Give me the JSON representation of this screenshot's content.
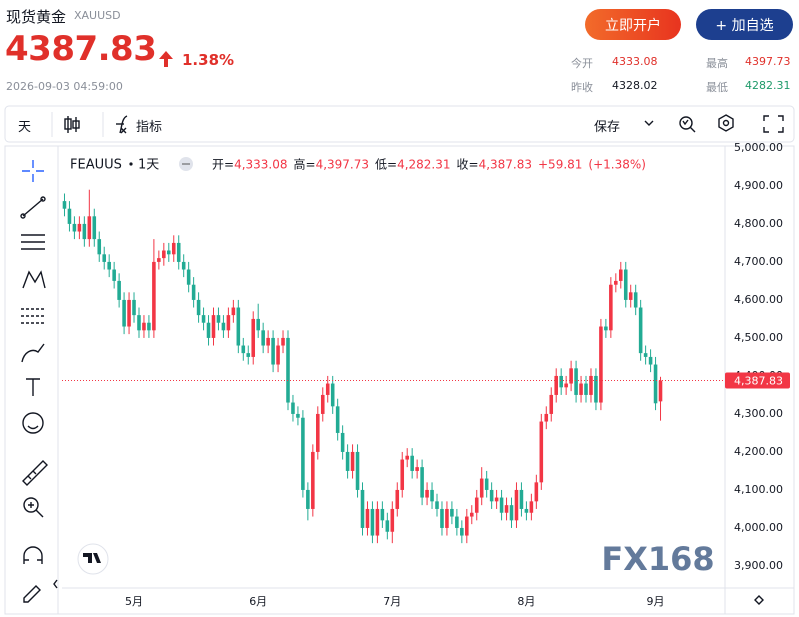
{
  "header": {
    "name": "现货黄金",
    "code": "XAUUSD",
    "price": "4387.83",
    "change": "1.38%",
    "time": "2026-09-03 04:59:00",
    "open_account": "立即开户",
    "watchlist": "+ 加自选",
    "stats": [
      {
        "label": "今开",
        "value": "4333.08"
      },
      {
        "label": "最高",
        "value": "4397.73"
      },
      {
        "label": "昨收",
        "value": "4328.02"
      },
      {
        "label": "最低",
        "value": "4282.31"
      }
    ]
  },
  "toolbar": {
    "interval": "天",
    "indicators": "指标",
    "save": "保存"
  },
  "chart_data": {
    "type": "candlestick",
    "symbol": "FEAUUS",
    "interval": "1天",
    "legend": [
      {
        "label": "开=",
        "value": "4,333.08"
      },
      {
        "label": "高=",
        "value": "4,397.73"
      },
      {
        "label": "低=",
        "value": "4,282.31"
      },
      {
        "label": "收=",
        "value": "4,387.83"
      }
    ],
    "change": "+59.81",
    "change_pct": "(+1.38%)",
    "last_label": "4,387.83",
    "watermark": "FX168",
    "up_color": "#f23645",
    "down_color": "#22ab94",
    "price_line": true,
    "grid": false,
    "categories": [
      null,
      null,
      null,
      null,
      null,
      null,
      null,
      null,
      null,
      null,
      null,
      null,
      null,
      null,
      "5月",
      null,
      null,
      null,
      null,
      null,
      null,
      null,
      null,
      null,
      null,
      null,
      null,
      null,
      null,
      null,
      null,
      null,
      null,
      null,
      null,
      null,
      null,
      null,
      null,
      "6月",
      null,
      null,
      null,
      null,
      null,
      null,
      null,
      null,
      null,
      null,
      null,
      null,
      null,
      null,
      null,
      null,
      null,
      null,
      null,
      null,
      null,
      null,
      null,
      null,
      null,
      null,
      "7月",
      null,
      null,
      null,
      null,
      null,
      null,
      null,
      null,
      null,
      null,
      null,
      null,
      null,
      null,
      null,
      null,
      null,
      null,
      null,
      null,
      null,
      null,
      null,
      null,
      null,
      null,
      "8月",
      null,
      null,
      null,
      null,
      null,
      null,
      null,
      null,
      null,
      null,
      null,
      null,
      null,
      null,
      null,
      null,
      null,
      null,
      null,
      null,
      null,
      null,
      null,
      null,
      null,
      "9月",
      null
    ],
    "open": [
      4860,
      4840,
      4800,
      4780,
      4800,
      4760,
      4820,
      4760,
      4720,
      4700,
      4680,
      4650,
      4600,
      4530,
      4600,
      4560,
      4520,
      4540,
      4520,
      4700,
      4710,
      4730,
      4720,
      4750,
      4700,
      4680,
      4640,
      4600,
      4560,
      4540,
      4500,
      4560,
      4540,
      4520,
      4560,
      4580,
      4480,
      4460,
      4450,
      4550,
      4520,
      4480,
      4500,
      4430,
      4480,
      4500,
      4330,
      4300,
      4290,
      4100,
      4050,
      4200,
      4300,
      4350,
      4380,
      4320,
      4250,
      4200,
      4150,
      4200,
      4100,
      4000,
      4050,
      3980,
      4050,
      4020,
      3990,
      4050,
      4100,
      4180,
      4190,
      4150,
      4160,
      4080,
      4100,
      4070,
      4050,
      4000,
      4050,
      4030,
      4000,
      3980,
      4030,
      4040,
      4080,
      4130,
      4100,
      4070,
      4080,
      4040,
      4060,
      4020,
      4100,
      4050,
      4040,
      4070,
      4120,
      4280,
      4300,
      4350,
      4400,
      4370,
      4380,
      4420,
      4350,
      4380,
      4350,
      4400,
      4330,
      4530,
      4520,
      4640,
      4650,
      4680,
      4600,
      4620,
      4580,
      4460,
      4450,
      4430,
      4333.08
    ],
    "high": [
      4880,
      4860,
      4820,
      4820,
      4820,
      4890,
      4840,
      4780,
      4740,
      4720,
      4700,
      4670,
      4620,
      4620,
      4620,
      4580,
      4560,
      4560,
      4760,
      4730,
      4750,
      4750,
      4770,
      4770,
      4720,
      4700,
      4660,
      4620,
      4580,
      4560,
      4580,
      4580,
      4560,
      4580,
      4600,
      4600,
      4500,
      4480,
      4570,
      4590,
      4540,
      4520,
      4520,
      4500,
      4520,
      4520,
      4350,
      4320,
      4310,
      4120,
      4220,
      4320,
      4370,
      4400,
      4400,
      4340,
      4270,
      4220,
      4220,
      4220,
      4120,
      4070,
      4070,
      4070,
      4070,
      4040,
      4070,
      4120,
      4200,
      4210,
      4210,
      4180,
      4180,
      4120,
      4120,
      4090,
      4070,
      4070,
      4070,
      4050,
      4020,
      4050,
      4060,
      4100,
      4160,
      4150,
      4120,
      4100,
      4100,
      4080,
      4080,
      4120,
      4120,
      4070,
      4090,
      4140,
      4300,
      4320,
      4370,
      4420,
      4420,
      4400,
      4440,
      4440,
      4400,
      4400,
      4420,
      4420,
      4550,
      4550,
      4660,
      4670,
      4700,
      4700,
      4640,
      4640,
      4600,
      4480,
      4470,
      4450,
      4397.73
    ],
    "low": [
      4820,
      4780,
      4760,
      4760,
      4740,
      4740,
      4740,
      4700,
      4680,
      4660,
      4630,
      4580,
      4510,
      4510,
      4540,
      4500,
      4500,
      4500,
      4500,
      4680,
      4690,
      4700,
      4700,
      4680,
      4660,
      4620,
      4580,
      4540,
      4520,
      4480,
      4480,
      4520,
      4500,
      4500,
      4540,
      4460,
      4440,
      4430,
      4430,
      4500,
      4460,
      4460,
      4410,
      4410,
      4460,
      4310,
      4280,
      4270,
      4080,
      4020,
      4030,
      4180,
      4280,
      4330,
      4300,
      4230,
      4180,
      4130,
      4130,
      4080,
      3980,
      3980,
      3960,
      3960,
      4000,
      3970,
      3960,
      4030,
      4080,
      4160,
      4130,
      4130,
      4060,
      4060,
      4050,
      4030,
      3980,
      3980,
      4010,
      3980,
      3960,
      3960,
      4010,
      4020,
      4060,
      4080,
      4050,
      4050,
      4020,
      4020,
      4000,
      4000,
      4030,
      4020,
      4020,
      4050,
      4100,
      4260,
      4280,
      4330,
      4350,
      4350,
      4360,
      4330,
      4330,
      4330,
      4330,
      4310,
      4310,
      4500,
      4500,
      4620,
      4630,
      4580,
      4580,
      4560,
      4440,
      4430,
      4410,
      4310,
      4282.31
    ],
    "close": [
      4840,
      4800,
      4780,
      4800,
      4760,
      4820,
      4760,
      4720,
      4700,
      4680,
      4650,
      4600,
      4530,
      4600,
      4560,
      4520,
      4540,
      4520,
      4700,
      4710,
      4730,
      4720,
      4750,
      4700,
      4680,
      4640,
      4600,
      4560,
      4540,
      4500,
      4560,
      4540,
      4520,
      4560,
      4580,
      4480,
      4460,
      4450,
      4550,
      4520,
      4480,
      4500,
      4430,
      4480,
      4500,
      4330,
      4300,
      4290,
      4100,
      4050,
      4200,
      4300,
      4350,
      4380,
      4320,
      4250,
      4200,
      4150,
      4200,
      4100,
      4000,
      4050,
      3980,
      4050,
      4020,
      3990,
      4050,
      4100,
      4180,
      4190,
      4150,
      4160,
      4080,
      4100,
      4070,
      4050,
      4000,
      4050,
      4030,
      4000,
      3980,
      4030,
      4040,
      4080,
      4130,
      4100,
      4070,
      4080,
      4040,
      4060,
      4020,
      4100,
      4050,
      4040,
      4070,
      4120,
      4280,
      4300,
      4350,
      4400,
      4370,
      4380,
      4420,
      4350,
      4380,
      4350,
      4400,
      4330,
      4530,
      4520,
      4640,
      4650,
      4680,
      4600,
      4620,
      4580,
      4460,
      4450,
      4430,
      4328.02,
      4387.83
    ],
    "ylim": [
      3842,
      5005
    ],
    "yticks": [
      {
        "value": 3900,
        "label": "3,900.00"
      },
      {
        "value": 4000,
        "label": "4,000.00"
      },
      {
        "value": 4100,
        "label": "4,100.00"
      },
      {
        "value": 4200,
        "label": "4,200.00"
      },
      {
        "value": 4300,
        "label": "4,300.00"
      },
      {
        "value": 4400,
        "label": "4,400.00"
      },
      {
        "value": 4500,
        "label": "4,500.00"
      },
      {
        "value": 4600,
        "label": "4,600.00"
      },
      {
        "value": 4700,
        "label": "4,700.00"
      },
      {
        "value": 4800,
        "label": "4,800.00"
      },
      {
        "value": 4900,
        "label": "4,900.00"
      },
      {
        "value": 5000,
        "label": "5,000.00"
      }
    ]
  }
}
